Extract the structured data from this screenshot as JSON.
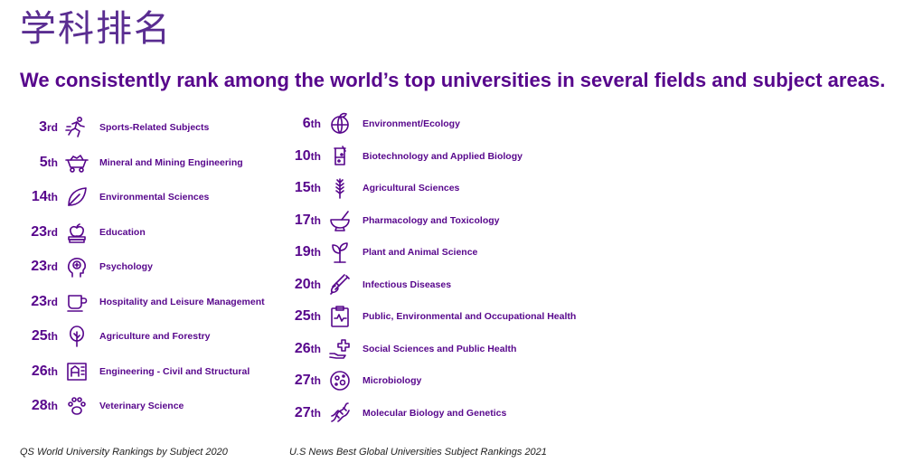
{
  "title": "学科排名",
  "subtitle": "We consistently rank among the world’s top universities in several fields and subject areas.",
  "left": {
    "source": "QS World University Rankings by Subject 2020",
    "items": [
      {
        "rank": "3",
        "suffix": "rd",
        "subject": "Sports-Related Subjects",
        "icon": "runner-icon"
      },
      {
        "rank": "5",
        "suffix": "th",
        "subject": "Mineral and Mining Engineering",
        "icon": "mining-cart-icon"
      },
      {
        "rank": "14",
        "suffix": "th",
        "subject": "Environmental Sciences",
        "icon": "leaf-icon"
      },
      {
        "rank": "23",
        "suffix": "rd",
        "subject": "Education",
        "icon": "apple-books-icon"
      },
      {
        "rank": "23",
        "suffix": "rd",
        "subject": "Psychology",
        "icon": "head-brain-icon"
      },
      {
        "rank": "23",
        "suffix": "rd",
        "subject": "Hospitality and Leisure Management",
        "icon": "cup-icon"
      },
      {
        "rank": "25",
        "suffix": "th",
        "subject": "Agriculture and Forestry",
        "icon": "tree-icon"
      },
      {
        "rank": "26",
        "suffix": "th",
        "subject": "Engineering - Civil and Structural",
        "icon": "blueprint-icon"
      },
      {
        "rank": "28",
        "suffix": "th",
        "subject": "Veterinary Science",
        "icon": "paw-icon"
      }
    ]
  },
  "right": {
    "source": "U.S News Best Global Universities Subject Rankings 2021",
    "items": [
      {
        "rank": "6",
        "suffix": "th",
        "subject": "Environment/Ecology",
        "icon": "globe-leaf-icon"
      },
      {
        "rank": "10",
        "suffix": "th",
        "subject": "Biotechnology and Applied Biology",
        "icon": "beaker-icon"
      },
      {
        "rank": "15",
        "suffix": "th",
        "subject": "Agricultural Sciences",
        "icon": "wheat-icon"
      },
      {
        "rank": "17",
        "suffix": "th",
        "subject": "Pharmacology and Toxicology",
        "icon": "mortar-pestle-icon"
      },
      {
        "rank": "19",
        "suffix": "th",
        "subject": "Plant and Animal Science",
        "icon": "plant-icon"
      },
      {
        "rank": "20",
        "suffix": "th",
        "subject": "Infectious Diseases",
        "icon": "syringe-icon"
      },
      {
        "rank": "25",
        "suffix": "th",
        "subject": "Public, Environmental and Occupational Health",
        "icon": "clipboard-pulse-icon"
      },
      {
        "rank": "26",
        "suffix": "th",
        "subject": "Social Sciences and Public Health",
        "icon": "hand-cross-icon"
      },
      {
        "rank": "27",
        "suffix": "th",
        "subject": "Microbiology",
        "icon": "microbe-icon"
      },
      {
        "rank": "27",
        "suffix": "th",
        "subject": "Molecular Biology and Genetics",
        "icon": "dna-icon"
      }
    ]
  },
  "colors": {
    "accent": "#57068c",
    "title": "#5a2d91",
    "source": "#222222"
  }
}
